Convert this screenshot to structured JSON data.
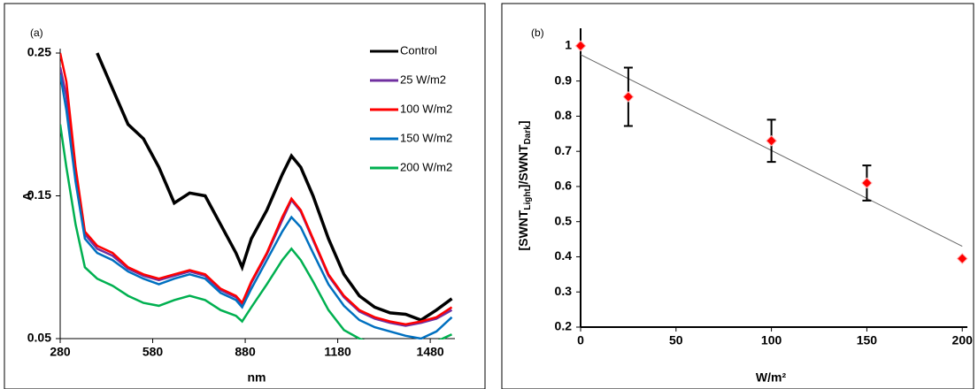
{
  "chart_data": [
    {
      "type": "line",
      "panel_label": "(a)",
      "xlabel": "nm",
      "ylabel": "A",
      "x": [
        280,
        300,
        330,
        360,
        400,
        450,
        500,
        550,
        600,
        650,
        700,
        750,
        800,
        850,
        870,
        900,
        950,
        1000,
        1030,
        1060,
        1100,
        1150,
        1200,
        1250,
        1300,
        1350,
        1400,
        1450,
        1500,
        1550
      ],
      "series": [
        {
          "name": "Control",
          "color": "#000000",
          "values": [
            null,
            null,
            null,
            null,
            0.25,
            0.225,
            0.2,
            0.19,
            0.17,
            0.145,
            0.152,
            0.15,
            0.13,
            0.11,
            0.1,
            0.12,
            0.14,
            0.165,
            0.178,
            0.17,
            0.15,
            0.12,
            0.095,
            0.08,
            0.072,
            0.068,
            0.067,
            0.063,
            0.07,
            0.078
          ]
        },
        {
          "name": "25 W/m2",
          "color": "#7030a0",
          "values": [
            0.24,
            0.22,
            0.165,
            0.123,
            0.113,
            0.108,
            0.099,
            0.094,
            0.091,
            0.094,
            0.097,
            0.094,
            0.084,
            0.079,
            0.074,
            0.089,
            0.109,
            0.133,
            0.147,
            0.139,
            0.119,
            0.094,
            0.079,
            0.069,
            0.064,
            0.061,
            0.059,
            0.061,
            0.064,
            0.07
          ]
        },
        {
          "name": "100 W/m2",
          "color": "#ff0000",
          "values": [
            0.25,
            0.23,
            0.17,
            0.125,
            0.115,
            0.11,
            0.1,
            0.095,
            0.092,
            0.095,
            0.098,
            0.095,
            0.085,
            0.08,
            0.075,
            0.09,
            0.11,
            0.135,
            0.148,
            0.14,
            0.12,
            0.095,
            0.08,
            0.07,
            0.065,
            0.062,
            0.06,
            0.062,
            0.065,
            0.072
          ]
        },
        {
          "name": "150 W/m2",
          "color": "#0070c0",
          "values": [
            0.235,
            0.21,
            0.16,
            0.12,
            0.11,
            0.105,
            0.097,
            0.092,
            0.088,
            0.092,
            0.095,
            0.092,
            0.082,
            0.077,
            0.072,
            0.085,
            0.105,
            0.125,
            0.135,
            0.128,
            0.11,
            0.088,
            0.073,
            0.063,
            0.058,
            0.055,
            0.052,
            0.05,
            0.055,
            0.065
          ]
        },
        {
          "name": "200 W/m2",
          "color": "#00b050",
          "values": [
            0.2,
            0.17,
            0.13,
            0.1,
            0.092,
            0.087,
            0.08,
            0.075,
            0.073,
            0.077,
            0.08,
            0.077,
            0.07,
            0.066,
            0.062,
            0.072,
            0.088,
            0.105,
            0.113,
            0.105,
            0.09,
            0.07,
            0.056,
            0.05,
            0.046,
            0.044,
            0.044,
            0.045,
            0.048,
            0.053
          ]
        }
      ],
      "xlim": [
        280,
        1560
      ],
      "ylim": [
        0.05,
        0.25
      ],
      "xticks": [
        280,
        580,
        880,
        1180,
        1480
      ],
      "yticks": [
        0.05,
        0.15,
        0.25
      ],
      "legend": "upper right"
    },
    {
      "type": "scatter",
      "panel_label": "(b)",
      "xlabel": "W/m²",
      "ylabel_parts": [
        "[SWNT",
        "Light",
        "]/SWNT",
        "Dark",
        "]"
      ],
      "x": [
        0,
        25,
        100,
        150,
        200
      ],
      "values": [
        1,
        0.855,
        0.73,
        0.61,
        0.395
      ],
      "errors": [
        null,
        0.083,
        0.06,
        0.05,
        null
      ],
      "color": "#ff0000",
      "trendline": {
        "x": [
          0,
          200
        ],
        "y": [
          0.975,
          0.43
        ]
      },
      "xlim": [
        0,
        205
      ],
      "ylim": [
        0.2,
        1.05
      ],
      "xticks": [
        0,
        50,
        100,
        150,
        200
      ],
      "yticks": [
        0.2,
        0.3,
        0.4,
        0.5,
        0.6,
        0.7,
        0.8,
        0.9,
        1
      ]
    }
  ]
}
